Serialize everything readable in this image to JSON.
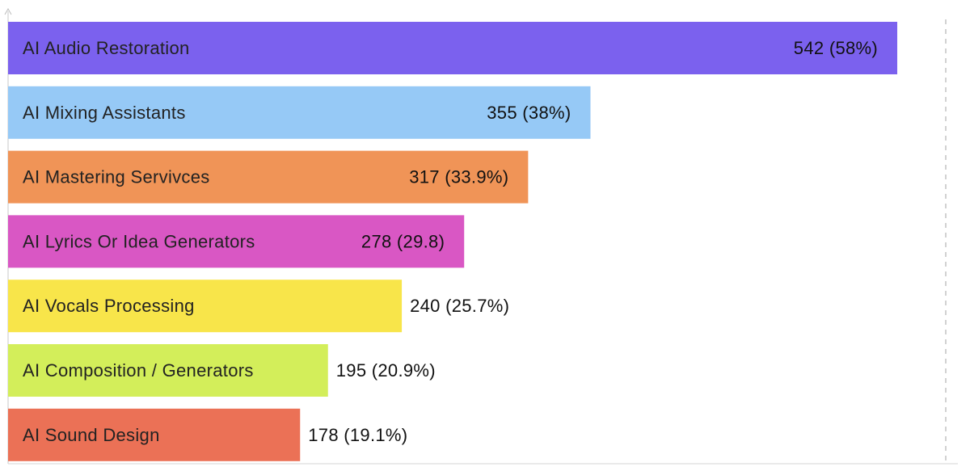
{
  "chart_data": {
    "type": "bar",
    "orientation": "horizontal",
    "categories": [
      "AI Audio Restoration",
      "AI Mixing Assistants",
      "AI Mastering Servivces",
      "AI Lyrics Or Idea Generators",
      "AI Vocals Processing",
      "AI Composition / Generators",
      "AI Sound Design"
    ],
    "values": [
      542,
      355,
      317,
      278,
      240,
      195,
      178
    ],
    "value_labels": [
      "542 (58%)",
      "355 (38%)",
      "317 (33.9%)",
      "278 (29.8)",
      "240 (25.7%)",
      "195 (20.9%)",
      "178 (19.1%)"
    ],
    "colors": [
      "#7B61EE",
      "#96C9F6",
      "#F09457",
      "#D957C4",
      "#F8E54A",
      "#D3EE5A",
      "#EB7156"
    ],
    "xlim": [
      0,
      542
    ],
    "title": "",
    "xlabel": "",
    "ylabel": "",
    "grid": false,
    "legend": "none"
  }
}
